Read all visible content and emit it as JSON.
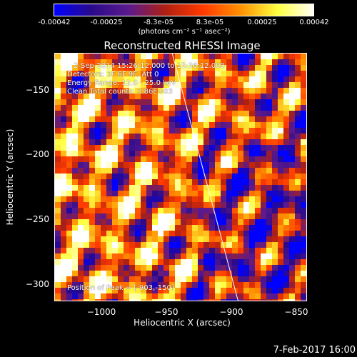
{
  "colorbar": {
    "ticks": [
      "-0.00042",
      "-0.00025",
      "-8.3e-05",
      "8.3e-05",
      "0.00025",
      "0.00042"
    ],
    "unit_label": "(photons cm⁻² s⁻¹ asec⁻²)",
    "range": [
      -0.00042,
      0.00042
    ],
    "colormap_stops": [
      "#0000ff",
      "#2a0a8a",
      "#5b1a8e",
      "#b02010",
      "#ff3a00",
      "#ff9000",
      "#ffff40",
      "#ffffff"
    ]
  },
  "plot": {
    "title": "Reconstructed RHESSI Image",
    "xlabel": "Heliocentric X (arcsec)",
    "ylabel": "Heliocentric Y (arcsec)",
    "xticks": [
      "−1000",
      "−950",
      "−900",
      "−850"
    ],
    "yticks": [
      "−150",
      "−200",
      "−250",
      "−300"
    ],
    "xlim": [
      -1036,
      -841
    ],
    "ylim": [
      -320,
      -127
    ],
    "annotations": {
      "time": "2-Sep-2014 15:26:12.000 to 15:36:12.000",
      "detectors": "Detectors: 3F 6F 9F, Att 0",
      "energy": "Energy Range: 12.0 - 25.0 keV",
      "method": "Clean    Total counts: 3.86E+03",
      "peak": "Position of Peak = [-903,-150]"
    },
    "limb_line": {
      "x": [
        -945,
        -894
      ],
      "y": [
        -127,
        -320
      ]
    }
  },
  "chart_data": {
    "type": "heatmap",
    "title": "Reconstructed RHESSI Image",
    "xlabel": "Heliocentric X (arcsec)",
    "ylabel": "Heliocentric Y (arcsec)",
    "xlim": [
      -1036,
      -841
    ],
    "ylim": [
      -320,
      -127
    ],
    "color_range": [
      -0.00042,
      0.00042
    ],
    "peak_position": [
      -903,
      -150
    ]
  },
  "footer": {
    "date": "7-Feb-2017 16:00"
  }
}
